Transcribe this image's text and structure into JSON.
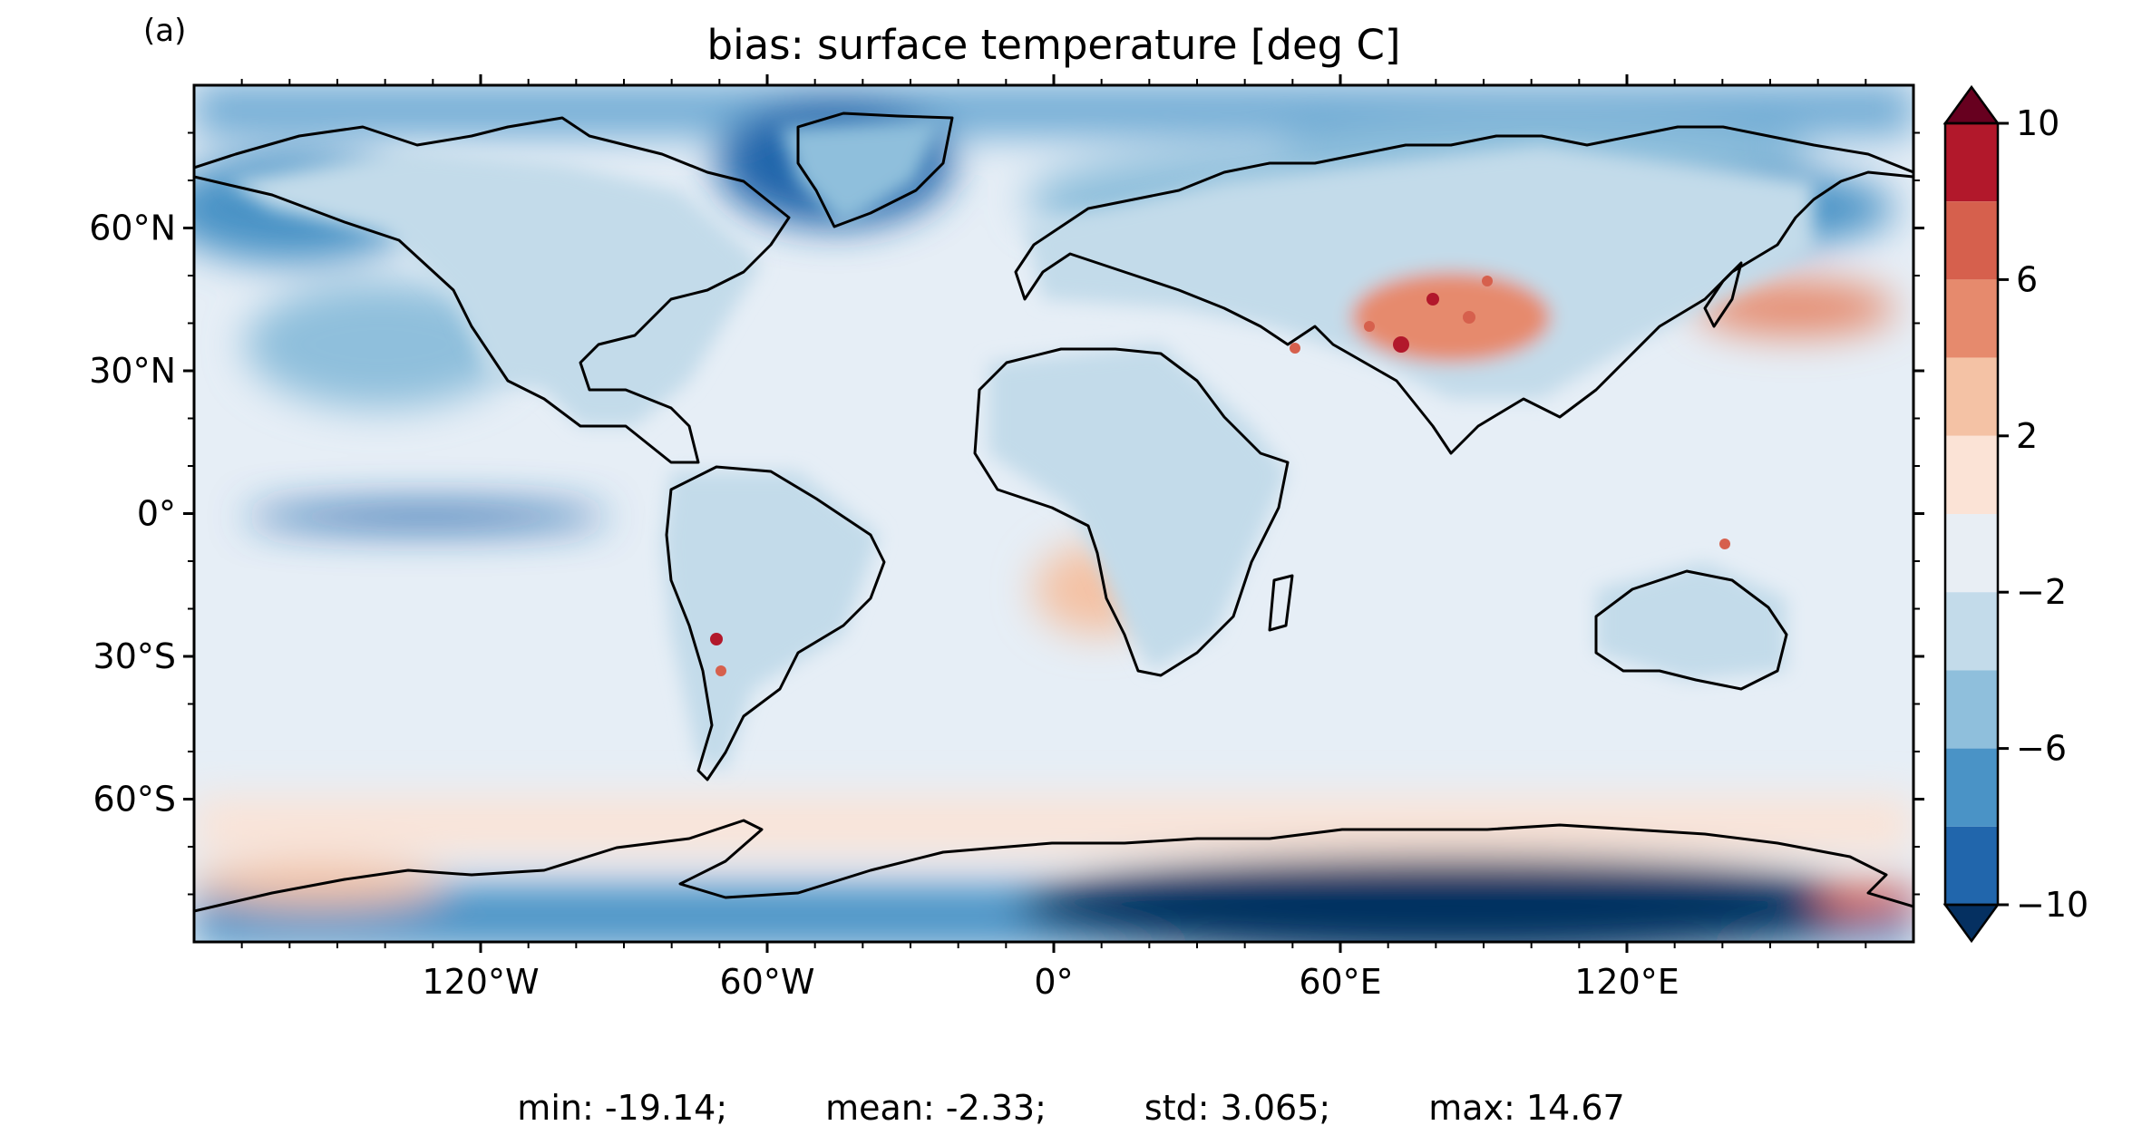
{
  "panel_label": "(a)",
  "title": "bias: surface temperature [deg C]",
  "map": {
    "projection": "PlateCarree",
    "lon_range": [
      -180,
      180
    ],
    "lat_range": [
      -90,
      90
    ],
    "x_ticks": [
      {
        "value": -120,
        "label": "120°W"
      },
      {
        "value": -60,
        "label": "60°W"
      },
      {
        "value": 0,
        "label": "0°"
      },
      {
        "value": 60,
        "label": "60°E"
      },
      {
        "value": 120,
        "label": "120°E"
      }
    ],
    "y_ticks": [
      {
        "value": 60,
        "label": "60°N"
      },
      {
        "value": 30,
        "label": "30°N"
      },
      {
        "value": 0,
        "label": "0°"
      },
      {
        "value": -30,
        "label": "30°S"
      },
      {
        "value": -60,
        "label": "60°S"
      }
    ],
    "colormap": "RdBu_r",
    "colors": {
      "ocean_base": "#e6eef6",
      "coastline": "#000000"
    }
  },
  "colorbar": {
    "min": -10,
    "max": 10,
    "extend": "both",
    "tick_labels": [
      {
        "value": 10,
        "label": "10"
      },
      {
        "value": 6,
        "label": "6"
      },
      {
        "value": 2,
        "label": "2"
      },
      {
        "value": -2,
        "label": "−2"
      },
      {
        "value": -6,
        "label": "−6"
      },
      {
        "value": -10,
        "label": "−10"
      }
    ],
    "levels": [
      10,
      8,
      6,
      4,
      2,
      0,
      -2,
      -4,
      -6,
      -8,
      -10
    ],
    "bin_colors": [
      "#b2182b",
      "#d6604d",
      "#e68a6d",
      "#f4c2a5",
      "#fbe3d6",
      "#e8eef4",
      "#c3dbea",
      "#8fbfdc",
      "#4a93c6",
      "#2166ac"
    ],
    "over_color": "#67001f",
    "under_color": "#053061"
  },
  "stats": {
    "min": "min: -19.14;",
    "mean": "mean: -2.33;",
    "std": "std: 3.065;",
    "max": "max: 14.67"
  }
}
